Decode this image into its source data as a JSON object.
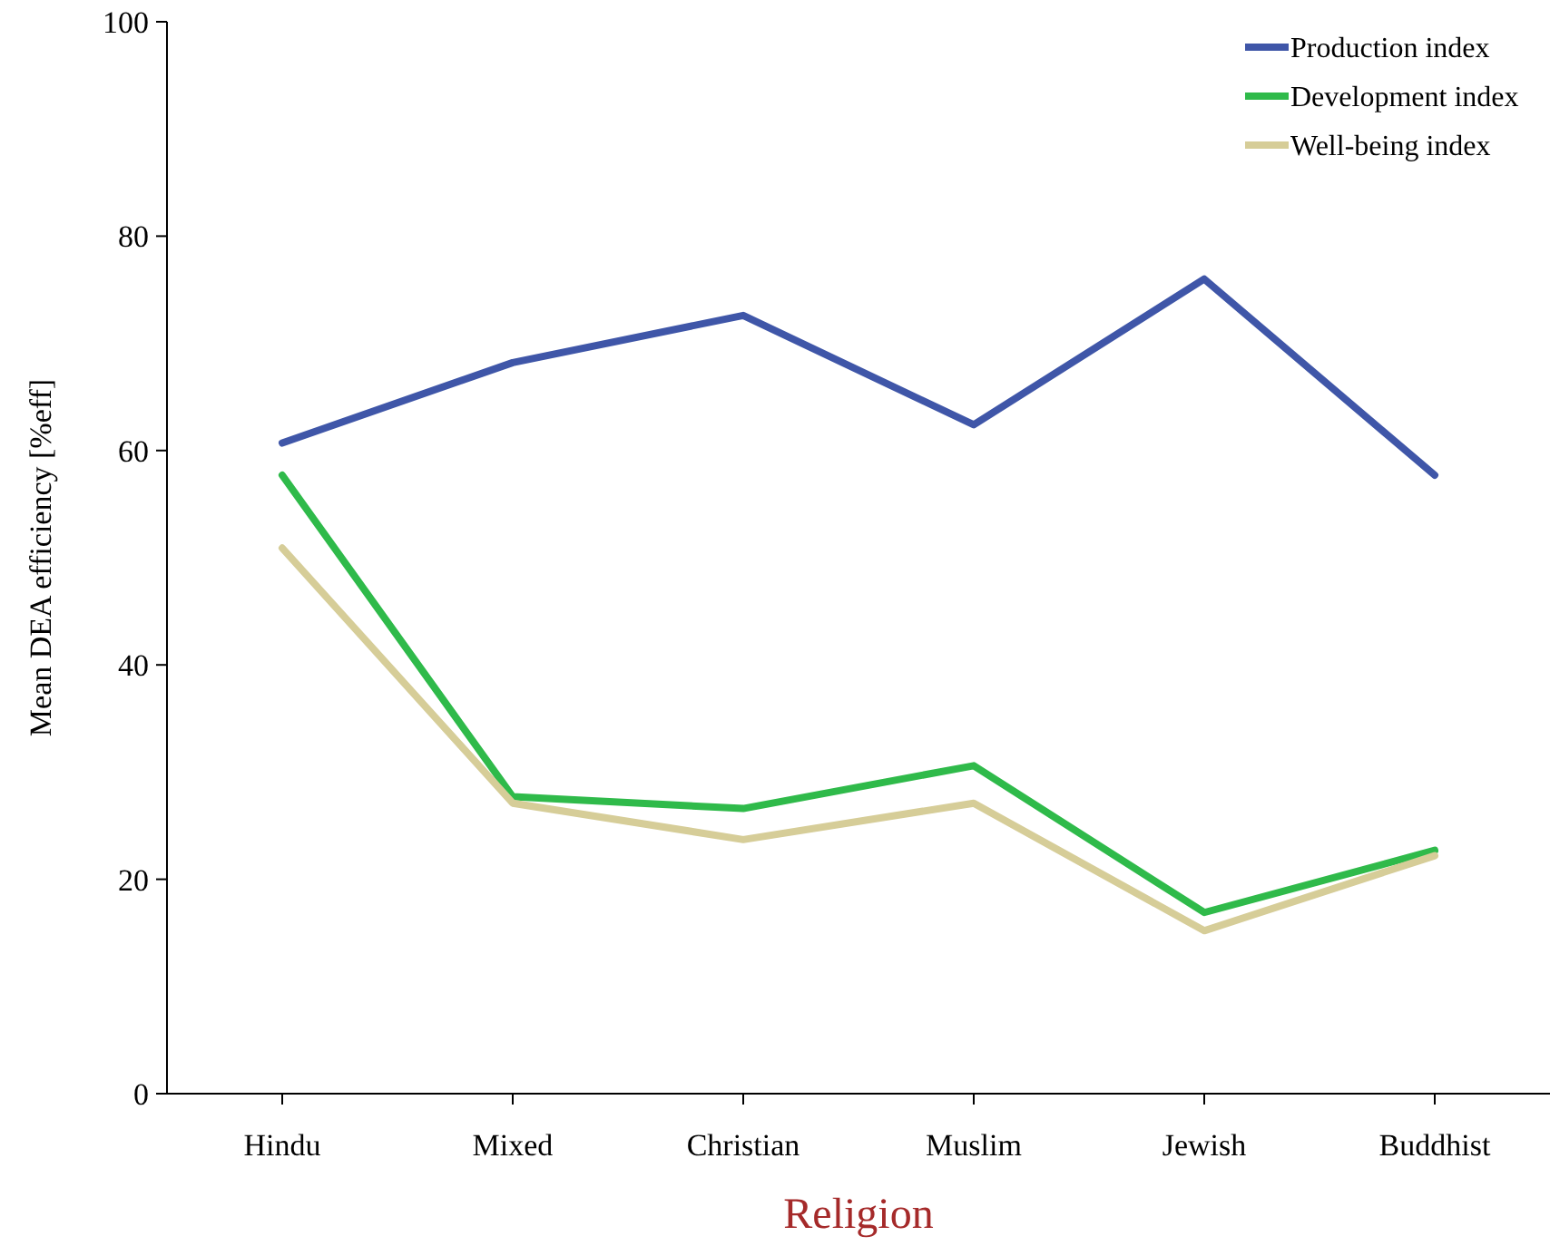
{
  "chart_data": {
    "type": "line",
    "xlabel": "Religion",
    "ylabel": "Mean DEA efficiency [%eff]",
    "categories": [
      "Hindu",
      "Mixed",
      "Christian",
      "Muslim",
      "Jewish",
      "Buddhist"
    ],
    "ylim": [
      0,
      100
    ],
    "yticks": [
      0,
      20,
      40,
      60,
      80,
      100
    ],
    "grid": false,
    "legend": "top right",
    "marker": "none",
    "line_style": "solid",
    "series": [
      {
        "name": "Production index",
        "color": "#3f56a8",
        "values": [
          60.7,
          68.2,
          72.6,
          62.4,
          76.0,
          57.7
        ]
      },
      {
        "name": "Development index",
        "color": "#2fba4a",
        "values": [
          57.7,
          27.7,
          26.6,
          30.6,
          16.9,
          22.7
        ]
      },
      {
        "name": "Well-being index",
        "color": "#d6cd98",
        "values": [
          50.9,
          27.1,
          23.7,
          27.1,
          15.2,
          22.2
        ]
      }
    ]
  }
}
